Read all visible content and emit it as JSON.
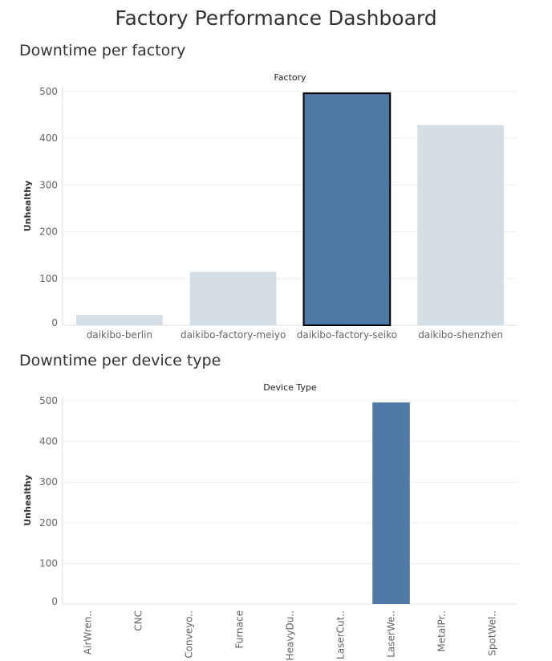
{
  "dashboard": {
    "title": "Factory Performance Dashboard"
  },
  "chart_data": [
    {
      "type": "bar",
      "section_title": "Downtime per factory",
      "header": "Factory",
      "ylabel": "Unhealthy",
      "categories": [
        "daikibo-berlin",
        "daikibo-factory-meiyo",
        "daikibo-factory-seiko",
        "daikibo-shenzhen"
      ],
      "values": [
        22,
        114,
        496,
        428
      ],
      "ylim": [
        0,
        510
      ],
      "yticks": [
        0,
        100,
        200,
        300,
        400,
        500
      ],
      "highlighted": "daikibo-factory-seiko",
      "colors": {
        "highlight": "#4e79a7",
        "muted": "#d5dde5",
        "outline": "#000000"
      },
      "grid": true
    },
    {
      "type": "bar",
      "section_title": "Downtime per device type",
      "header": "Device Type",
      "ylabel": "Unhealthy",
      "categories": [
        "AirWren..",
        "CNC",
        "Conveyo..",
        "Furnace",
        "HeavyDu..",
        "LaserCut..",
        "LaserWe..",
        "MetalPr..",
        "SpotWel.."
      ],
      "values": [
        0,
        0,
        0,
        0,
        0,
        0,
        496,
        0,
        0
      ],
      "ylim": [
        0,
        510
      ],
      "yticks": [
        0,
        100,
        200,
        300,
        400,
        500
      ],
      "colors": {
        "bar": "#4e79a7"
      },
      "grid": true
    }
  ]
}
